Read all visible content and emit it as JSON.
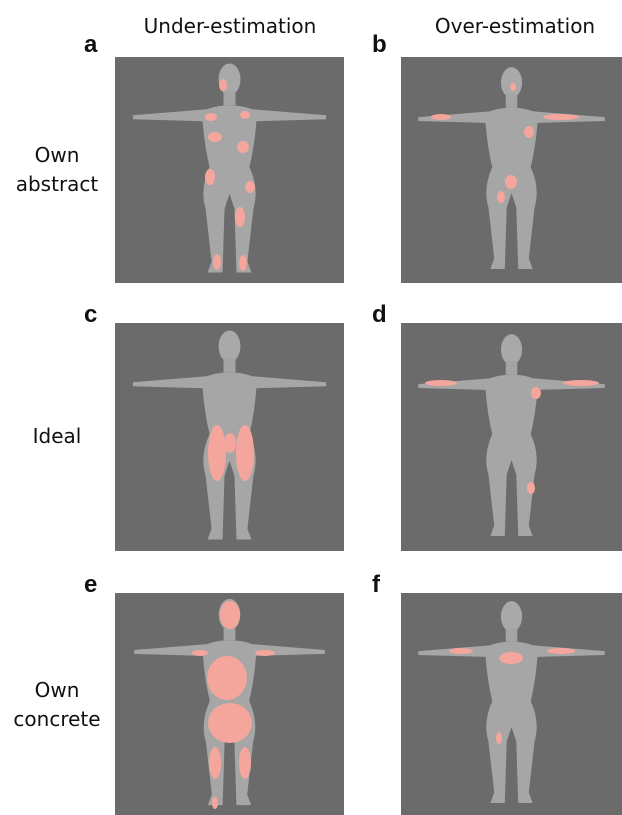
{
  "column_headers": [
    "Under-estimation",
    "Over-estimation"
  ],
  "rows": [
    {
      "label": [
        "Own",
        "abstract"
      ],
      "panels": [
        "a",
        "b"
      ]
    },
    {
      "label": [
        "Ideal"
      ],
      "panels": [
        "c",
        "d"
      ]
    },
    {
      "label": [
        "Own",
        "concrete"
      ],
      "panels": [
        "e",
        "f"
      ]
    }
  ]
}
